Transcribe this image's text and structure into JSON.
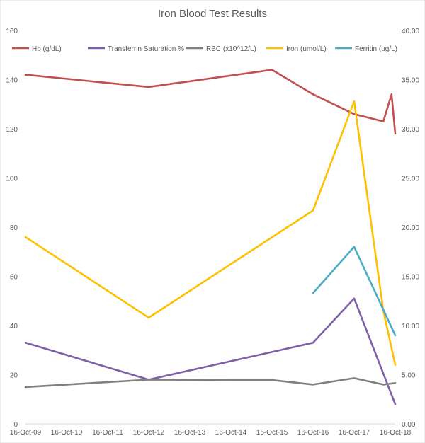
{
  "chart_data": {
    "type": "line",
    "title": "Iron Blood Test Results",
    "x": [
      "16-Oct-09",
      "16-Oct-10",
      "16-Oct-11",
      "16-Oct-12",
      "16-Oct-13",
      "16-Oct-14",
      "16-Oct-15",
      "16-Oct-16",
      "16-Oct-17",
      "16-Oct-18"
    ],
    "x_range": [
      2009.79,
      2018.79
    ],
    "ylim_left": [
      0,
      160
    ],
    "yticks_left": [
      "0",
      "20",
      "40",
      "60",
      "80",
      "100",
      "120",
      "140",
      "160"
    ],
    "ylim_right": [
      0,
      40
    ],
    "yticks_right": [
      "0.00",
      "5.00",
      "10.00",
      "15.00",
      "20.00",
      "25.00",
      "30.00",
      "35.00",
      "40.00"
    ],
    "grid": false,
    "legend_position": "top",
    "series": [
      {
        "name": "Hb (g/dL)",
        "axis": "left",
        "color": "#c0504d",
        "points": [
          [
            2009.79,
            142
          ],
          [
            2012.79,
            137
          ],
          [
            2015.79,
            144
          ],
          [
            2016.79,
            134
          ],
          [
            2017.79,
            126
          ],
          [
            2018.5,
            123
          ],
          [
            2018.7,
            134
          ],
          [
            2018.79,
            118
          ]
        ]
      },
      {
        "name": "Transferrin Saturation %",
        "axis": "left",
        "color": "#7f5fa8",
        "points": [
          [
            2009.79,
            33
          ],
          [
            2012.79,
            18
          ],
          [
            2016.79,
            33
          ],
          [
            2017.79,
            51
          ],
          [
            2018.79,
            8
          ]
        ]
      },
      {
        "name": "RBC (x10^12/L)",
        "axis": "right",
        "color": "#808080",
        "points": [
          [
            2009.79,
            3.75
          ],
          [
            2012.79,
            4.5
          ],
          [
            2014.79,
            4.45
          ],
          [
            2015.79,
            4.45
          ],
          [
            2016.79,
            4.0
          ],
          [
            2017.79,
            4.65
          ],
          [
            2018.5,
            4.0
          ],
          [
            2018.79,
            4.15
          ]
        ]
      },
      {
        "name": "Iron (umol/L)",
        "axis": "right",
        "color": "#ffc000",
        "points": [
          [
            2009.79,
            19.0
          ],
          [
            2012.79,
            10.8
          ],
          [
            2016.79,
            21.7
          ],
          [
            2017.79,
            32.8
          ],
          [
            2018.5,
            11.5
          ],
          [
            2018.79,
            6.0
          ]
        ]
      },
      {
        "name": "Ferritin (ug/L)",
        "axis": "right",
        "color": "#4bacc6",
        "points": [
          [
            2016.79,
            13.3
          ],
          [
            2017.79,
            18.0
          ],
          [
            2018.79,
            9.0
          ]
        ]
      }
    ]
  }
}
